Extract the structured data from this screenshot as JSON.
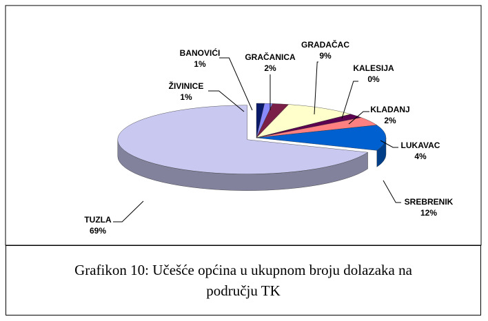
{
  "chart_data": {
    "type": "pie3d",
    "categories": [
      "ŽIVINICE",
      "BANOVIĆI",
      "GRAČANICA",
      "GRADAČAC",
      "KALESIJA",
      "KLADANJ",
      "LUKAVAC",
      "SREBRENIK",
      "TUZLA"
    ],
    "values": [
      1,
      1,
      2,
      9,
      0,
      2,
      4,
      12,
      69
    ],
    "value_labels": [
      "1%",
      "1%",
      "2%",
      "9%",
      "0%",
      "2%",
      "4%",
      "12%",
      "69%"
    ],
    "colors": [
      "#0a1a6a",
      "#8a8aff",
      "#7a1f47",
      "#ffffcc",
      "#a0e0e0",
      "#5c0050",
      "#ff8080",
      "#0060d0",
      "#c8c8f0"
    ]
  },
  "caption": "Grafikon 10: Učešće općina u ukupnom broju dolazaka na području TK"
}
